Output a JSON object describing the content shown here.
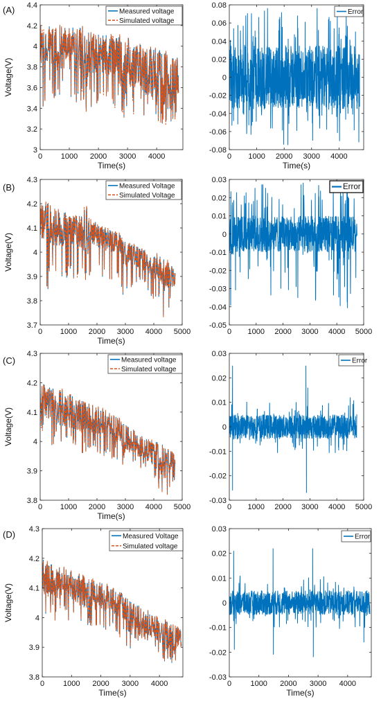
{
  "chart_data": [
    {
      "panel_label": "(A)",
      "type": "line",
      "xlabel": "Time(s)",
      "ylabel": "Voltage(V)",
      "xlim": [
        0,
        4900
      ],
      "ylim": [
        3,
        4.4
      ],
      "xticks": [
        0,
        1000,
        2000,
        3000,
        4000
      ],
      "yticks": [
        3,
        3.2,
        3.4,
        3.6,
        3.8,
        4,
        4.2,
        4.4
      ],
      "legend_position": "top-right",
      "series": [
        {
          "name": "Measured voltage",
          "color": "#0072BD",
          "style": "solid",
          "x": [
            0,
            100,
            300,
            600,
            900,
            1200,
            1500,
            1600,
            1650,
            1800,
            2100,
            2400,
            2700,
            2950,
            3000,
            3100,
            3400,
            3700,
            4000,
            4300,
            4400,
            4500,
            4750
          ],
          "y_high": [
            4.2,
            4.2,
            4.2,
            4.2,
            4.2,
            4.2,
            4.2,
            4.2,
            4.15,
            4.12,
            4.12,
            4.12,
            4.1,
            4.1,
            4.1,
            4.05,
            4.02,
            4.0,
            3.98,
            3.95,
            3.95,
            3.92,
            3.9
          ],
          "y_low": [
            3.4,
            3.3,
            3.5,
            3.5,
            3.48,
            3.45,
            3.42,
            3.2,
            3.35,
            3.4,
            3.4,
            3.38,
            3.38,
            3.15,
            3.3,
            3.35,
            3.35,
            3.3,
            3.3,
            3.1,
            3.3,
            3.25,
            3.35
          ],
          "y_mean": [
            3.9,
            3.92,
            3.92,
            3.9,
            3.9,
            3.88,
            3.85,
            3.7,
            3.86,
            3.85,
            3.85,
            3.83,
            3.8,
            3.55,
            3.72,
            3.7,
            3.68,
            3.66,
            3.62,
            3.45,
            3.55,
            3.55,
            3.6
          ]
        },
        {
          "name": "Simulated voltage",
          "color": "#D95319",
          "style": "dashed"
        }
      ]
    },
    {
      "panel_label": "",
      "type": "line",
      "xlabel": "Time(s)",
      "ylabel": "",
      "xlim": [
        0,
        4900
      ],
      "ylim": [
        -0.08,
        0.08
      ],
      "xticks": [
        0,
        1000,
        2000,
        3000,
        4000
      ],
      "yticks": [
        -0.08,
        -0.06,
        -0.04,
        -0.02,
        0,
        0.02,
        0.04,
        0.06,
        0.08
      ],
      "legend_position": "top-right",
      "series": [
        {
          "name": "Error",
          "color": "#0072BD",
          "style": "solid",
          "x_range": [
            0,
            4750
          ],
          "typical_band": [
            -0.035,
            0.035
          ],
          "max": 0.067,
          "min": -0.06
        }
      ]
    },
    {
      "panel_label": "(B)",
      "type": "line",
      "xlabel": "Time(s)",
      "ylabel": "Voltage(V)",
      "xlim": [
        0,
        5000
      ],
      "ylim": [
        3.7,
        4.3
      ],
      "xticks": [
        0,
        1000,
        2000,
        3000,
        4000,
        5000
      ],
      "yticks": [
        3.7,
        3.8,
        3.9,
        4,
        4.1,
        4.2,
        4.3
      ],
      "legend_position": "top-right",
      "series": [
        {
          "name": "Measured Voltage",
          "color": "#0072BD",
          "style": "solid",
          "x": [
            0,
            300,
            700,
            1100,
            1500,
            1600,
            1700,
            2000,
            2400,
            2800,
            2950,
            3100,
            3500,
            3900,
            4300,
            4400,
            4600,
            4750
          ],
          "y_high": [
            4.2,
            4.2,
            4.18,
            4.15,
            4.15,
            4.21,
            4.15,
            4.12,
            4.1,
            4.08,
            4.05,
            4.04,
            4.02,
            4.0,
            3.98,
            3.97,
            3.95,
            3.92
          ],
          "y_low": [
            3.95,
            3.82,
            3.9,
            3.88,
            3.86,
            3.8,
            3.9,
            3.88,
            3.85,
            3.84,
            3.75,
            3.85,
            3.84,
            3.82,
            3.74,
            3.72,
            3.78,
            3.8
          ],
          "y_mean": [
            4.1,
            4.08,
            4.07,
            4.06,
            4.05,
            3.98,
            4.05,
            4.05,
            4.03,
            4.02,
            3.95,
            3.98,
            3.96,
            3.93,
            3.9,
            3.85,
            3.88,
            3.88
          ]
        },
        {
          "name": "Simulated Voltage",
          "color": "#D95319",
          "style": "dashed"
        }
      ]
    },
    {
      "panel_label": "",
      "type": "line",
      "xlabel": "",
      "ylabel": "",
      "xlim": [
        0,
        5000
      ],
      "ylim": [
        -0.05,
        0.03
      ],
      "xticks": [
        0,
        1000,
        2000,
        3000,
        4000,
        5000
      ],
      "yticks": [
        -0.05,
        -0.04,
        -0.03,
        -0.02,
        -0.01,
        0,
        0.01,
        0.02,
        0.03
      ],
      "legend_position": "top-right",
      "series": [
        {
          "name": "Error",
          "color": "#0072BD",
          "style": "solid",
          "x_range": [
            0,
            4750
          ],
          "typical_band": [
            -0.01,
            0.01
          ],
          "max": 0.029,
          "min": -0.041
        }
      ]
    },
    {
      "panel_label": "(C)",
      "type": "line",
      "xlabel": "Time(s)",
      "ylabel": "Voltage(V)",
      "xlim": [
        0,
        5000
      ],
      "ylim": [
        3.8,
        4.3
      ],
      "xticks": [
        0,
        1000,
        2000,
        3000,
        4000,
        5000
      ],
      "yticks": [
        3.8,
        3.9,
        4,
        4.1,
        4.2,
        4.3
      ],
      "legend_position": "top-right",
      "series": [
        {
          "name": "Measured voltage",
          "color": "#0072BD",
          "style": "solid",
          "x": [
            0,
            300,
            700,
            1100,
            1500,
            1600,
            1700,
            2000,
            2400,
            2800,
            2950,
            3100,
            3500,
            3900,
            4300,
            4400,
            4600,
            4750
          ],
          "y_high": [
            4.2,
            4.19,
            4.18,
            4.16,
            4.14,
            4.13,
            4.13,
            4.12,
            4.1,
            4.08,
            4.06,
            4.05,
            4.03,
            4.01,
            3.99,
            3.98,
            3.97,
            3.96
          ],
          "y_low": [
            4.02,
            3.98,
            3.99,
            3.98,
            3.96,
            3.92,
            3.97,
            3.96,
            3.95,
            3.93,
            3.88,
            3.92,
            3.91,
            3.89,
            3.82,
            3.8,
            3.86,
            3.87
          ],
          "y_mean": [
            4.12,
            4.1,
            4.09,
            4.08,
            4.06,
            4.02,
            4.06,
            4.05,
            4.04,
            4.02,
            3.97,
            3.99,
            3.97,
            3.95,
            3.91,
            3.88,
            3.92,
            3.92
          ]
        },
        {
          "name": "Simulated voltage",
          "color": "#D95319",
          "style": "dashed"
        }
      ]
    },
    {
      "panel_label": "",
      "type": "line",
      "xlabel": "",
      "ylabel": "",
      "xlim": [
        0,
        5000
      ],
      "ylim": [
        -0.03,
        0.03
      ],
      "xticks": [
        0,
        1000,
        2000,
        3000,
        4000,
        5000
      ],
      "yticks": [
        -0.03,
        -0.02,
        -0.01,
        0,
        0.01,
        0.02,
        0.03
      ],
      "legend_position": "top-right",
      "series": [
        {
          "name": "Error",
          "color": "#0072BD",
          "style": "solid",
          "x_range": [
            0,
            4750
          ],
          "typical_band": [
            -0.005,
            0.005
          ],
          "spikes": [
            {
              "x": 120,
              "y": 0.025
            },
            {
              "x": 120,
              "y": -0.026
            },
            {
              "x": 2850,
              "y": 0.025
            },
            {
              "x": 2870,
              "y": -0.027
            },
            {
              "x": 2920,
              "y": 0.016
            },
            {
              "x": 4500,
              "y": 0.012
            }
          ]
        }
      ]
    },
    {
      "panel_label": "(D)",
      "type": "line",
      "xlabel": "Time(s)",
      "ylabel": "Voltage(V)",
      "xlim": [
        0,
        4800
      ],
      "ylim": [
        3.8,
        4.3
      ],
      "xticks": [
        0,
        1000,
        2000,
        3000,
        4000
      ],
      "yticks": [
        3.8,
        3.9,
        4,
        4.1,
        4.2,
        4.3
      ],
      "legend_position": "top-right",
      "series": [
        {
          "name": "Measured Voltage",
          "color": "#0072BD",
          "style": "solid",
          "x": [
            0,
            300,
            700,
            1100,
            1500,
            1600,
            1700,
            2000,
            2400,
            2800,
            2950,
            3100,
            3500,
            3900,
            4300,
            4400,
            4600,
            4750
          ],
          "y_high": [
            4.2,
            4.18,
            4.17,
            4.15,
            4.14,
            4.13,
            4.13,
            4.12,
            4.1,
            4.08,
            4.06,
            4.05,
            4.03,
            4.01,
            3.99,
            3.98,
            3.97,
            3.96
          ],
          "y_low": [
            4.02,
            3.99,
            3.99,
            3.98,
            3.96,
            3.94,
            3.97,
            3.96,
            3.95,
            3.93,
            3.88,
            3.92,
            3.91,
            3.89,
            3.83,
            3.83,
            3.86,
            3.87
          ],
          "y_mean": [
            4.12,
            4.1,
            4.09,
            4.08,
            4.06,
            4.02,
            4.06,
            4.05,
            4.04,
            4.02,
            3.97,
            3.99,
            3.97,
            3.95,
            3.91,
            3.88,
            3.92,
            3.92
          ]
        },
        {
          "name": "Simulated voltage",
          "color": "#D95319",
          "style": "dashed"
        }
      ]
    },
    {
      "panel_label": "",
      "type": "line",
      "xlabel": "Time(s)",
      "ylabel": "",
      "xlim": [
        0,
        4800
      ],
      "ylim": [
        -0.03,
        0.03
      ],
      "xticks": [
        0,
        1000,
        2000,
        3000,
        4000
      ],
      "yticks": [
        -0.03,
        -0.02,
        -0.01,
        0,
        0.01,
        0.02,
        0.03
      ],
      "legend_position": "top-right",
      "series": [
        {
          "name": "Error",
          "color": "#0072BD",
          "style": "solid",
          "x_range": [
            0,
            4750
          ],
          "typical_band": [
            -0.005,
            0.005
          ],
          "spikes": [
            {
              "x": 150,
              "y": 0.021
            },
            {
              "x": 170,
              "y": -0.019
            },
            {
              "x": 1480,
              "y": 0.022
            },
            {
              "x": 1490,
              "y": -0.021
            },
            {
              "x": 2820,
              "y": 0.022
            },
            {
              "x": 2840,
              "y": -0.022
            },
            {
              "x": 4550,
              "y": -0.016
            }
          ]
        }
      ]
    }
  ]
}
